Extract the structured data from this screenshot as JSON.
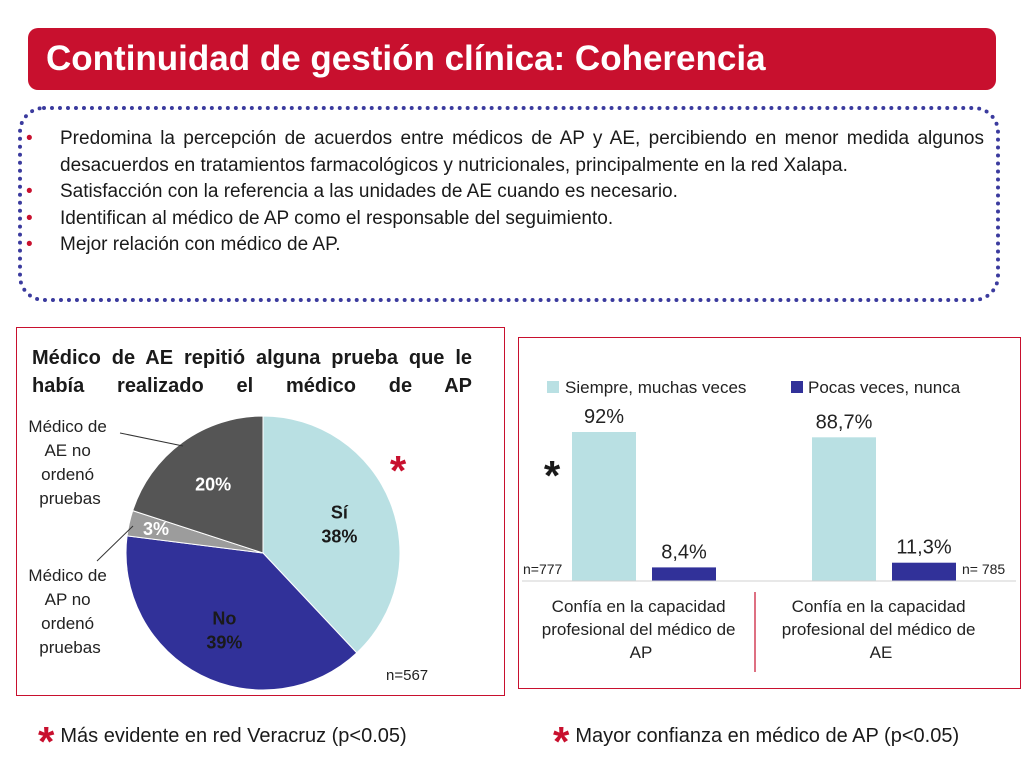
{
  "header": {
    "title": "Continuidad de gestión clínica: Coherencia"
  },
  "bullets": [
    "Predomina la percepción de acuerdos entre médicos de AP y AE, percibiendo en menor medida algunos desacuerdos en tratamientos farmacológicos y nutricionales, principalmente en la red Xalapa.",
    "Satisfacción con la referencia a  las unidades de AE cuando es necesario.",
    "Identifican al médico de AP como el responsable del seguimiento.",
    "Mejor relación con médico de AP."
  ],
  "colors": {
    "accent": "#c8102e",
    "dotted_border": "#3b3b9e",
    "light_series": "#b9e0e3",
    "dark_series": "#313199",
    "dark_slice": "#555555",
    "grey_slice": "#9c9c9c"
  },
  "chart_data": [
    {
      "type": "pie",
      "title": "Médico de AE repitió alguna prueba que le había realizado el médico de AP",
      "slices": [
        {
          "label": "Sí",
          "value": 38,
          "display": "38%",
          "color": "#b9e0e3"
        },
        {
          "label": "No",
          "value": 39,
          "display": "39%",
          "color": "#313199"
        },
        {
          "label": "Médico de AP no ordenó pruebas",
          "value": 3,
          "display": "3%",
          "color": "#9c9c9c"
        },
        {
          "label": "Médico de AE no ordenó pruebas",
          "value": 20,
          "display": "20%",
          "color": "#555555"
        }
      ],
      "ext_labels": {
        "ae": [
          "Médico de",
          "AE no",
          "ordenó",
          "pruebas"
        ],
        "ap": [
          "Médico de",
          "AP no",
          "ordenó",
          "pruebas"
        ]
      },
      "annotation": "*",
      "n_label": "n=567"
    },
    {
      "type": "bar",
      "title": "",
      "categories": [
        [
          "Confía en la capacidad",
          "profesional del médico de",
          "AP"
        ],
        [
          "Confía en la capacidad",
          "profesional del médico de",
          "AE"
        ]
      ],
      "series": [
        {
          "name": "Siempre, muchas veces",
          "values": [
            92,
            88.7
          ],
          "display": [
            "92%",
            "88,7%"
          ],
          "color": "#b9e0e3"
        },
        {
          "name": "Pocas veces, nunca",
          "values": [
            8.4,
            11.3
          ],
          "display": [
            "8,4%",
            "11,3%"
          ],
          "color": "#313199"
        }
      ],
      "ylim": [
        0,
        100
      ],
      "legend_position": "top",
      "grid": false,
      "n_labels": [
        "n=777",
        "n= 785"
      ],
      "annotation": "*"
    }
  ],
  "footnotes": {
    "star": "*",
    "left": "Más evidente en red Veracruz (p<0.05)",
    "right": "Mayor confianza en médico de AP (p<0.05)"
  }
}
